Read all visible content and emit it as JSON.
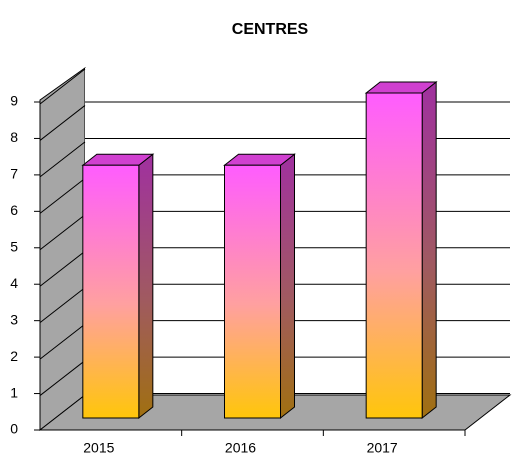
{
  "chart_data": {
    "type": "bar3d",
    "title": "CENTRES",
    "categories": [
      "2015",
      "2016",
      "2017"
    ],
    "values": [
      7,
      7,
      9
    ],
    "color": "#ff66ff",
    "ylim": [
      0,
      9
    ],
    "yticks": [
      0,
      1,
      2,
      3,
      4,
      5,
      6,
      7,
      8,
      9
    ],
    "grid": true
  }
}
